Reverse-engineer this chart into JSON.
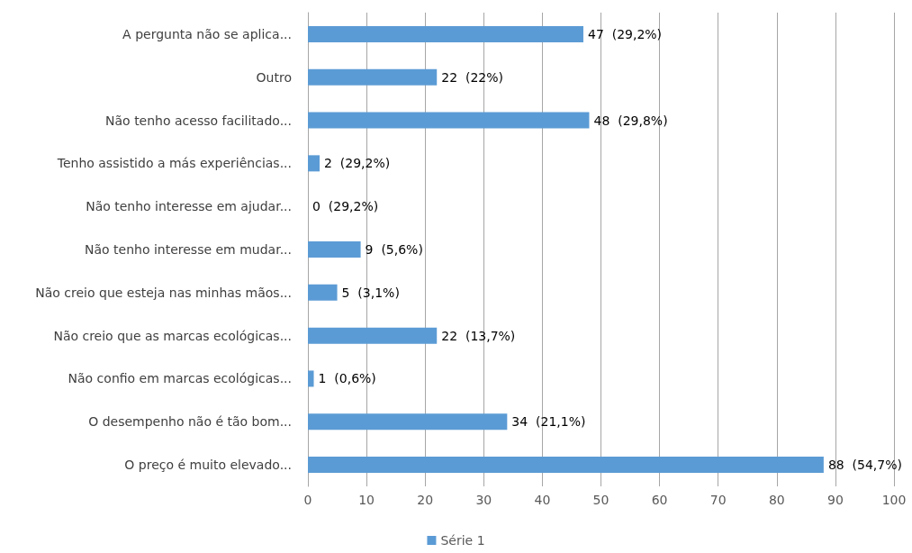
{
  "chart_data": {
    "type": "bar",
    "orientation": "horizontal",
    "categories": [
      "A pergunta não se aplica...",
      "Outro",
      "Não tenho acesso facilitado...",
      "Tenho assistido a más experiências...",
      "Não tenho interesse em ajudar...",
      "Não tenho interesse em mudar...",
      "Não creio que esteja nas minhas mãos...",
      "Não creio que as marcas ecológicas...",
      "Não confio em marcas ecológicas...",
      "O desempenho não é tão bom...",
      "O preço é muito elevado..."
    ],
    "series": [
      {
        "name": "Série 1",
        "color": "#5b9bd5",
        "values": [
          47,
          22,
          48,
          2,
          0,
          9,
          5,
          22,
          1,
          34,
          88
        ],
        "value_labels": [
          "47  (29,2%)",
          "22  (22%)",
          "48  (29,8%)",
          "2  (29,2%)",
          "0  (29,2%)",
          "9  (5,6%)",
          "5  (3,1%)",
          "22  (13,7%)",
          "1  (0,6%)",
          "34  (21,1%)",
          "88  (54,7%)"
        ]
      }
    ],
    "xlim": [
      0,
      100
    ],
    "xticks": [
      0,
      10,
      20,
      30,
      40,
      50,
      60,
      70,
      80,
      90,
      100
    ],
    "grid": "x",
    "legend": "bottom"
  }
}
